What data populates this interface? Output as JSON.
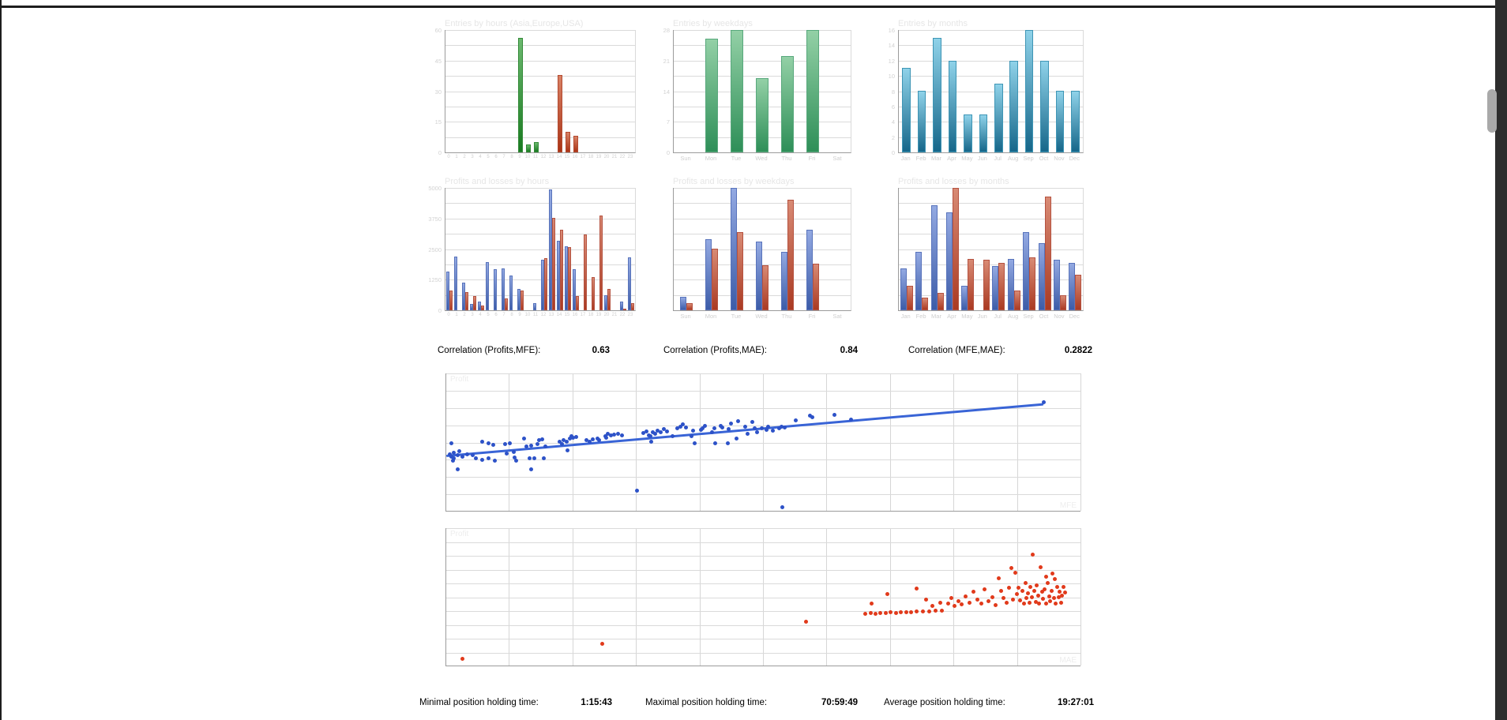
{
  "colors": {
    "scatter_blue": "#2d52c8",
    "scatter_red": "#e13a1b",
    "trend": "#3964d6",
    "grid": "#dadada",
    "axis": "#9b9b9b",
    "faint_title": "#e6e6e6",
    "scrollbar_track": "#2d2d2d",
    "scrollbar_thumb": "#a9a9a9"
  },
  "report": {
    "correlations": [
      {
        "label": "Correlation (Profits,MFE):",
        "value": "0.63"
      },
      {
        "label": "Correlation (Profits,MAE):",
        "value": "0.84"
      },
      {
        "label": "Correlation (MFE,MAE):",
        "value": "0.2822"
      }
    ],
    "holding_times": [
      {
        "label": "Minimal position holding time:",
        "value": "1:15:43"
      },
      {
        "label": "Maximal position holding time:",
        "value": "70:59:49"
      },
      {
        "label": "Average position holding time:",
        "value": "19:27:01"
      }
    ]
  },
  "chart_data": [
    {
      "id": "entries-by-hours",
      "type": "bar",
      "title": "Entries by hours (Asia,Europe,USA)",
      "categories": [
        "0",
        "1",
        "2",
        "3",
        "4",
        "5",
        "6",
        "7",
        "8",
        "9",
        "10",
        "11",
        "12",
        "13",
        "14",
        "15",
        "16",
        "17",
        "18",
        "19",
        "20",
        "21",
        "22",
        "23"
      ],
      "ymax": 60,
      "grid_rows": 8,
      "ytick_labels": [
        "60",
        "",
        "45",
        "",
        "30",
        "",
        "15",
        "",
        "0"
      ],
      "series": [
        {
          "name": "entries",
          "color": "green",
          "colors": [
            null,
            null,
            null,
            null,
            null,
            null,
            null,
            null,
            null,
            "green",
            "green",
            "green",
            null,
            null,
            "red",
            "red",
            "red",
            null,
            null,
            null,
            null,
            null,
            null,
            null
          ],
          "values": [
            0,
            0,
            0,
            0,
            0,
            0,
            0,
            0,
            0,
            56,
            4,
            5,
            0,
            0,
            38,
            10,
            8,
            0,
            0,
            0,
            0,
            0,
            0,
            0
          ]
        }
      ]
    },
    {
      "id": "entries-by-weekdays",
      "type": "bar",
      "title": "Entries by weekdays",
      "categories": [
        "Sun",
        "Mon",
        "Tue",
        "Wed",
        "Thu",
        "Fri",
        "Sat"
      ],
      "ymax": 28,
      "grid_rows": 8,
      "ytick_labels": [
        "28",
        "",
        "21",
        "",
        "14",
        "",
        "7",
        "",
        "0"
      ],
      "series": [
        {
          "name": "entries",
          "color": "green2",
          "values": [
            0,
            26,
            28,
            17,
            22,
            28,
            0
          ]
        }
      ]
    },
    {
      "id": "entries-by-months",
      "type": "bar",
      "title": "Entries by months",
      "categories": [
        "Jan",
        "Feb",
        "Mar",
        "Apr",
        "May",
        "Jun",
        "Jul",
        "Aug",
        "Sep",
        "Oct",
        "Nov",
        "Dec"
      ],
      "ymax": 16,
      "grid_rows": 8,
      "ytick_labels": [
        "16",
        "14",
        "12",
        "10",
        "8",
        "6",
        "4",
        "2",
        "0"
      ],
      "series": [
        {
          "name": "entries",
          "color": "teal",
          "values": [
            11,
            8,
            15,
            12,
            5,
            5,
            9,
            12,
            16,
            12,
            8,
            8
          ]
        }
      ]
    },
    {
      "id": "profits-losses-by-hours",
      "type": "bar",
      "title": "Profits and losses by hours",
      "categories": [
        "0",
        "1",
        "2",
        "3",
        "4",
        "5",
        "6",
        "7",
        "8",
        "9",
        "10",
        "11",
        "12",
        "13",
        "14",
        "15",
        "16",
        "17",
        "18",
        "19",
        "20",
        "21",
        "22",
        "23"
      ],
      "ymax": 5000,
      "grid_rows": 8,
      "ytick_labels": [
        "5000",
        "",
        "3750",
        "",
        "2500",
        "",
        "1250",
        "",
        "0"
      ],
      "series": [
        {
          "name": "profit",
          "color": "blue",
          "values": [
            1590,
            2200,
            1130,
            270,
            360,
            1960,
            1670,
            1700,
            1420,
            870,
            0,
            300,
            2080,
            4950,
            2850,
            2600,
            1670,
            0,
            0,
            0,
            610,
            0,
            360,
            2150
          ]
        },
        {
          "name": "loss",
          "color": "red2",
          "values": [
            800,
            0,
            730,
            570,
            180,
            0,
            0,
            480,
            0,
            800,
            0,
            0,
            2120,
            3760,
            3280,
            2570,
            590,
            3090,
            1370,
            3870,
            880,
            0,
            50,
            300
          ]
        }
      ]
    },
    {
      "id": "profits-losses-by-weekdays",
      "type": "bar",
      "title": "Profits and losses by weekdays",
      "categories": [
        "Sun",
        "Mon",
        "Tue",
        "Wed",
        "Thu",
        "Fri",
        "Sat"
      ],
      "ymax": 100,
      "grid_rows": 8,
      "ytick_labels": [
        "",
        "",
        "",
        "",
        "",
        "",
        "",
        "",
        ""
      ],
      "series": [
        {
          "name": "profit",
          "color": "blue",
          "values": [
            11,
            58,
            100,
            56,
            48,
            66,
            0
          ]
        },
        {
          "name": "loss",
          "color": "red2",
          "values": [
            6,
            50,
            64,
            37,
            90,
            38,
            0
          ]
        }
      ]
    },
    {
      "id": "profits-losses-by-months",
      "type": "bar",
      "title": "Profits and losses by months",
      "categories": [
        "Jan",
        "Feb",
        "Mar",
        "Apr",
        "May",
        "Jun",
        "Jul",
        "Aug",
        "Sep",
        "Oct",
        "Nov",
        "Dec"
      ],
      "ymax": 100,
      "grid_rows": 8,
      "ytick_labels": [
        "",
        "",
        "",
        "",
        "",
        "",
        "",
        "",
        ""
      ],
      "series": [
        {
          "name": "profit",
          "color": "blue",
          "values": [
            34,
            48,
            86,
            80,
            20,
            0,
            36,
            42,
            64,
            55,
            41,
            39
          ]
        },
        {
          "name": "loss",
          "color": "red2",
          "values": [
            20,
            10,
            14,
            100,
            42,
            41,
            39,
            16,
            43,
            93,
            12,
            29
          ]
        }
      ]
    },
    {
      "id": "profits-mfe-scatter",
      "type": "scatter",
      "corner_top_left": "Profit",
      "corner_bottom_right": "MFE",
      "color": "blue",
      "grid_cols": 10,
      "grid_rows": 8,
      "trend": [
        0,
        0.586,
        0.941,
        0.212
      ],
      "points": [
        [
          0.005,
          0.585
        ],
        [
          0.008,
          0.602
        ],
        [
          0.012,
          0.575
        ],
        [
          0.012,
          0.615
        ],
        [
          0.018,
          0.59
        ],
        [
          0.02,
          0.565
        ],
        [
          0.01,
          0.63
        ],
        [
          0.025,
          0.6
        ],
        [
          0.008,
          0.504
        ],
        [
          0.018,
          0.692
        ],
        [
          0.033,
          0.587
        ],
        [
          0.041,
          0.59
        ],
        [
          0.047,
          0.615
        ],
        [
          0.057,
          0.494
        ],
        [
          0.057,
          0.625
        ],
        [
          0.066,
          0.504
        ],
        [
          0.066,
          0.615
        ],
        [
          0.074,
          0.519
        ],
        [
          0.076,
          0.629
        ],
        [
          0.093,
          0.51
        ],
        [
          0.1,
          0.504
        ],
        [
          0.095,
          0.581
        ],
        [
          0.106,
          0.571
        ],
        [
          0.108,
          0.606
        ],
        [
          0.11,
          0.629
        ],
        [
          0.123,
          0.471
        ],
        [
          0.126,
          0.529
        ],
        [
          0.131,
          0.615
        ],
        [
          0.134,
          0.523
        ],
        [
          0.134,
          0.696
        ],
        [
          0.139,
          0.615
        ],
        [
          0.143,
          0.51
        ],
        [
          0.146,
          0.481
        ],
        [
          0.151,
          0.475
        ],
        [
          0.154,
          0.615
        ],
        [
          0.156,
          0.529
        ],
        [
          0.179,
          0.496
        ],
        [
          0.182,
          0.51
        ],
        [
          0.185,
          0.485
        ],
        [
          0.189,
          0.496
        ],
        [
          0.191,
          0.558
        ],
        [
          0.195,
          0.471
        ],
        [
          0.197,
          0.456
        ],
        [
          0.2,
          0.467
        ],
        [
          0.205,
          0.462
        ],
        [
          0.221,
          0.485
        ],
        [
          0.226,
          0.496
        ],
        [
          0.231,
          0.475
        ],
        [
          0.238,
          0.471
        ],
        [
          0.241,
          0.485
        ],
        [
          0.25,
          0.456
        ],
        [
          0.252,
          0.467
        ],
        [
          0.254,
          0.438
        ],
        [
          0.259,
          0.448
        ],
        [
          0.264,
          0.442
        ],
        [
          0.271,
          0.437
        ],
        [
          0.277,
          0.448
        ],
        [
          0.3,
          0.85
        ],
        [
          0.31,
          0.433
        ],
        [
          0.315,
          0.419
        ],
        [
          0.319,
          0.446
        ],
        [
          0.322,
          0.456
        ],
        [
          0.323,
          0.496
        ],
        [
          0.325,
          0.427
        ],
        [
          0.329,
          0.438
        ],
        [
          0.333,
          0.413
        ],
        [
          0.338,
          0.427
        ],
        [
          0.343,
          0.404
        ],
        [
          0.348,
          0.417
        ],
        [
          0.356,
          0.456
        ],
        [
          0.364,
          0.398
        ],
        [
          0.369,
          0.385
        ],
        [
          0.373,
          0.371
        ],
        [
          0.377,
          0.39
        ],
        [
          0.386,
          0.456
        ],
        [
          0.389,
          0.413
        ],
        [
          0.391,
          0.504
        ],
        [
          0.401,
          0.408
        ],
        [
          0.403,
          0.394
        ],
        [
          0.407,
          0.379
        ],
        [
          0.419,
          0.423
        ],
        [
          0.422,
          0.398
        ],
        [
          0.423,
          0.504
        ],
        [
          0.432,
          0.379
        ],
        [
          0.435,
          0.39
        ],
        [
          0.443,
          0.504
        ],
        [
          0.445,
          0.404
        ],
        [
          0.448,
          0.365
        ],
        [
          0.457,
          0.471
        ],
        [
          0.46,
          0.346
        ],
        [
          0.471,
          0.385
        ],
        [
          0.474,
          0.438
        ],
        [
          0.482,
          0.352
        ],
        [
          0.486,
          0.398
        ],
        [
          0.489,
          0.427
        ],
        [
          0.497,
          0.394
        ],
        [
          0.504,
          0.408
        ],
        [
          0.507,
          0.385
        ],
        [
          0.514,
          0.413
        ],
        [
          0.524,
          0.394
        ],
        [
          0.528,
          0.385
        ],
        [
          0.529,
          0.967
        ],
        [
          0.533,
          0.39
        ],
        [
          0.55,
          0.337
        ],
        [
          0.573,
          0.304
        ],
        [
          0.577,
          0.317
        ],
        [
          0.611,
          0.298
        ],
        [
          0.637,
          0.333
        ],
        [
          0.941,
          0.208
        ]
      ]
    },
    {
      "id": "profits-mae-scatter",
      "type": "scatter",
      "corner_top_left": "Profit",
      "corner_bottom_right": "MAE",
      "color": "red",
      "grid_cols": 10,
      "grid_rows": 10,
      "trend": null,
      "points": [
        [
          0.025,
          0.945
        ],
        [
          0.245,
          0.836
        ],
        [
          0.566,
          0.675
        ],
        [
          0.66,
          0.618
        ],
        [
          0.668,
          0.615
        ],
        [
          0.676,
          0.617
        ],
        [
          0.684,
          0.612
        ],
        [
          0.692,
          0.614
        ],
        [
          0.7,
          0.61
        ],
        [
          0.708,
          0.612
        ],
        [
          0.716,
          0.608
        ],
        [
          0.724,
          0.606
        ],
        [
          0.732,
          0.608
        ],
        [
          0.74,
          0.604
        ],
        [
          0.75,
          0.602
        ],
        [
          0.76,
          0.6
        ],
        [
          0.77,
          0.597
        ],
        [
          0.78,
          0.595
        ],
        [
          0.67,
          0.545
        ],
        [
          0.695,
          0.478
        ],
        [
          0.74,
          0.438
        ],
        [
          0.756,
          0.515
        ],
        [
          0.765,
          0.56
        ],
        [
          0.778,
          0.542
        ],
        [
          0.79,
          0.548
        ],
        [
          0.795,
          0.508
        ],
        [
          0.8,
          0.565
        ],
        [
          0.806,
          0.53
        ],
        [
          0.812,
          0.552
        ],
        [
          0.818,
          0.495
        ],
        [
          0.824,
          0.54
        ],
        [
          0.83,
          0.462
        ],
        [
          0.836,
          0.518
        ],
        [
          0.842,
          0.548
        ],
        [
          0.848,
          0.442
        ],
        [
          0.854,
          0.528
        ],
        [
          0.86,
          0.5
        ],
        [
          0.865,
          0.558
        ],
        [
          0.87,
          0.36
        ],
        [
          0.874,
          0.455
        ],
        [
          0.878,
          0.505
        ],
        [
          0.882,
          0.542
        ],
        [
          0.886,
          0.43
        ],
        [
          0.89,
          0.288
        ],
        [
          0.892,
          0.515
        ],
        [
          0.896,
          0.322
        ],
        [
          0.898,
          0.478
        ],
        [
          0.901,
          0.43
        ],
        [
          0.904,
          0.52
        ],
        [
          0.907,
          0.455
        ],
        [
          0.91,
          0.545
        ],
        [
          0.912,
          0.398
        ],
        [
          0.914,
          0.508
        ],
        [
          0.916,
          0.472
        ],
        [
          0.918,
          0.54
        ],
        [
          0.92,
          0.428
        ],
        [
          0.922,
          0.5
        ],
        [
          0.924,
          0.192
        ],
        [
          0.926,
          0.455
        ],
        [
          0.928,
          0.532
        ],
        [
          0.93,
          0.415
        ],
        [
          0.932,
          0.488
        ],
        [
          0.934,
          0.545
        ],
        [
          0.936,
          0.283
        ],
        [
          0.938,
          0.462
        ],
        [
          0.94,
          0.512
        ],
        [
          0.942,
          0.44
        ],
        [
          0.944,
          0.352
        ],
        [
          0.945,
          0.548
        ],
        [
          0.947,
          0.395
        ],
        [
          0.949,
          0.495
        ],
        [
          0.951,
          0.528
        ],
        [
          0.953,
          0.452
        ],
        [
          0.955,
          0.33
        ],
        [
          0.957,
          0.508
        ],
        [
          0.958,
          0.368
        ],
        [
          0.96,
          0.545
        ],
        [
          0.962,
          0.425
        ],
        [
          0.964,
          0.502
        ],
        [
          0.966,
          0.46
        ],
        [
          0.968,
          0.54
        ],
        [
          0.97,
          0.488
        ],
        [
          0.972,
          0.428
        ],
        [
          0.974,
          0.465
        ]
      ]
    }
  ]
}
